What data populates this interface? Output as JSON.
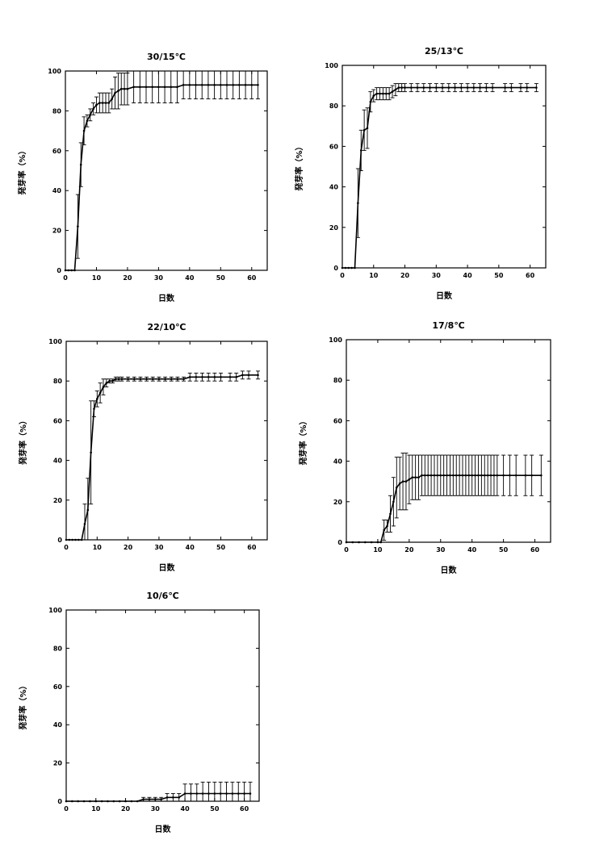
{
  "chart_data": [
    {
      "type": "line",
      "title": "30/15℃",
      "xlabel": "日数",
      "ylabel": "発芽率（%）",
      "xlim": [
        0,
        65
      ],
      "ylim": [
        0,
        100
      ],
      "xticks": [
        "0",
        "10",
        "20",
        "30",
        "40",
        "50",
        "60"
      ],
      "yticks": [
        "0",
        "20",
        "40",
        "60",
        "80",
        "100"
      ],
      "grid": false,
      "series": [
        {
          "x": [
            0,
            1,
            2,
            3,
            4,
            5,
            6,
            7,
            8,
            9,
            10,
            11,
            12,
            13,
            14,
            15,
            16,
            17,
            18,
            19,
            20,
            22,
            24,
            26,
            28,
            30,
            32,
            34,
            36,
            38,
            40,
            42,
            44,
            46,
            48,
            50,
            52,
            54,
            56,
            58,
            60,
            62
          ],
          "y": [
            0,
            0,
            0,
            0,
            22,
            53,
            70,
            75,
            78,
            81,
            83,
            84,
            84,
            84,
            84,
            86,
            89,
            90,
            91,
            91,
            91,
            92,
            92,
            92,
            92,
            92,
            92,
            92,
            92,
            93,
            93,
            93,
            93,
            93,
            93,
            93,
            93,
            93,
            93,
            93,
            93,
            93
          ],
          "err": [
            0,
            0,
            0,
            0,
            16,
            11,
            7,
            3,
            3,
            3,
            4,
            5,
            5,
            5,
            5,
            5,
            8,
            9,
            8,
            8,
            8,
            8,
            8,
            8,
            8,
            8,
            8,
            8,
            8,
            7,
            7,
            7,
            7,
            7,
            7,
            7,
            7,
            7,
            7,
            7,
            7,
            7
          ]
        }
      ]
    },
    {
      "type": "line",
      "title": "25/13℃",
      "xlabel": "日数",
      "ylabel": "発芽率（%）",
      "xlim": [
        0,
        65
      ],
      "ylim": [
        0,
        100
      ],
      "xticks": [
        "0",
        "10",
        "20",
        "30",
        "40",
        "50",
        "60"
      ],
      "yticks": [
        "0",
        "20",
        "40",
        "60",
        "80",
        "100"
      ],
      "grid": false,
      "series": [
        {
          "x": [
            0,
            1,
            2,
            3,
            4,
            5,
            6,
            7,
            8,
            9,
            10,
            11,
            12,
            13,
            14,
            15,
            16,
            17,
            18,
            19,
            20,
            22,
            24,
            26,
            28,
            30,
            32,
            34,
            36,
            38,
            40,
            42,
            44,
            46,
            48,
            52,
            54,
            57,
            59,
            62
          ],
          "y": [
            0,
            0,
            0,
            0,
            0,
            32,
            58,
            68,
            69,
            82,
            85,
            86,
            86,
            86,
            86,
            86,
            87,
            88,
            89,
            89,
            89,
            89,
            89,
            89,
            89,
            89,
            89,
            89,
            89,
            89,
            89,
            89,
            89,
            89,
            89,
            89,
            89,
            89,
            89,
            89
          ],
          "err": [
            0,
            0,
            0,
            0,
            0,
            17,
            10,
            10,
            10,
            5,
            3,
            3,
            3,
            3,
            3,
            3,
            3,
            3,
            2,
            2,
            2,
            2,
            2,
            2,
            2,
            2,
            2,
            2,
            2,
            2,
            2,
            2,
            2,
            2,
            2,
            2,
            2,
            2,
            2,
            2
          ]
        }
      ]
    },
    {
      "type": "line",
      "title": "22/10℃",
      "xlabel": "日数",
      "ylabel": "発芽率（%）",
      "xlim": [
        0,
        65
      ],
      "ylim": [
        0,
        100
      ],
      "xticks": [
        "0",
        "10",
        "20",
        "30",
        "40",
        "50",
        "60"
      ],
      "yticks": [
        "0",
        "20",
        "40",
        "60",
        "80",
        "100"
      ],
      "grid": false,
      "series": [
        {
          "x": [
            0,
            1,
            2,
            3,
            4,
            5,
            6,
            7,
            8,
            9,
            10,
            11,
            12,
            13,
            14,
            15,
            16,
            17,
            18,
            20,
            22,
            24,
            26,
            28,
            30,
            32,
            34,
            36,
            38,
            40,
            42,
            44,
            46,
            48,
            50,
            53,
            55,
            57,
            59,
            62
          ],
          "y": [
            0,
            0,
            0,
            0,
            0,
            0,
            8,
            15,
            44,
            66,
            71,
            74,
            77,
            79,
            80,
            80,
            81,
            81,
            81,
            81,
            81,
            81,
            81,
            81,
            81,
            81,
            81,
            81,
            81,
            82,
            82,
            82,
            82,
            82,
            82,
            82,
            82,
            83,
            83,
            83
          ],
          "err": [
            0,
            0,
            0,
            0,
            0,
            0,
            10,
            16,
            26,
            4,
            4,
            5,
            4,
            2,
            1,
            1,
            1,
            1,
            1,
            1,
            1,
            1,
            1,
            1,
            1,
            1,
            1,
            1,
            1,
            2,
            2,
            2,
            2,
            2,
            2,
            2,
            2,
            2,
            2,
            2
          ]
        }
      ]
    },
    {
      "type": "line",
      "title": "17/8℃",
      "xlabel": "日数",
      "ylabel": "発芽率（%）",
      "xlim": [
        0,
        65
      ],
      "ylim": [
        0,
        100
      ],
      "xticks": [
        "0",
        "10",
        "20",
        "30",
        "40",
        "50",
        "60"
      ],
      "yticks": [
        "0",
        "20",
        "40",
        "60",
        "80",
        "100"
      ],
      "grid": false,
      "series": [
        {
          "x": [
            0,
            2,
            4,
            6,
            8,
            10,
            11,
            12,
            13,
            14,
            15,
            16,
            17,
            18,
            19,
            20,
            21,
            22,
            23,
            24,
            25,
            26,
            27,
            28,
            29,
            30,
            31,
            32,
            33,
            34,
            35,
            36,
            37,
            38,
            39,
            40,
            41,
            42,
            43,
            44,
            45,
            46,
            47,
            48,
            50,
            52,
            54,
            57,
            59,
            62
          ],
          "y": [
            0,
            0,
            0,
            0,
            0,
            0,
            0,
            6,
            8,
            14,
            20,
            27,
            29,
            30,
            30,
            31,
            32,
            32,
            32,
            33,
            33,
            33,
            33,
            33,
            33,
            33,
            33,
            33,
            33,
            33,
            33,
            33,
            33,
            33,
            33,
            33,
            33,
            33,
            33,
            33,
            33,
            33,
            33,
            33,
            33,
            33,
            33,
            33,
            33,
            33
          ],
          "err": [
            0,
            0,
            0,
            0,
            0,
            0,
            0,
            5,
            3,
            9,
            12,
            15,
            13,
            14,
            14,
            12,
            11,
            11,
            11,
            10,
            10,
            10,
            10,
            10,
            10,
            10,
            10,
            10,
            10,
            10,
            10,
            10,
            10,
            10,
            10,
            10,
            10,
            10,
            10,
            10,
            10,
            10,
            10,
            10,
            10,
            10,
            10,
            10,
            10,
            10
          ]
        }
      ]
    },
    {
      "type": "line",
      "title": "10/6℃",
      "xlabel": "日数",
      "ylabel": "発芽率（%）",
      "xlim": [
        0,
        65
      ],
      "ylim": [
        0,
        100
      ],
      "xticks": [
        "0",
        "10",
        "20",
        "30",
        "40",
        "50",
        "60"
      ],
      "yticks": [
        "0",
        "20",
        "40",
        "60",
        "80",
        "100"
      ],
      "grid": false,
      "series": [
        {
          "x": [
            0,
            2,
            4,
            6,
            8,
            10,
            12,
            14,
            16,
            18,
            20,
            22,
            24,
            26,
            28,
            30,
            32,
            34,
            36,
            38,
            40,
            42,
            44,
            46,
            48,
            50,
            52,
            54,
            56,
            58,
            60,
            62
          ],
          "y": [
            0,
            0,
            0,
            0,
            0,
            0,
            0,
            0,
            0,
            0,
            0,
            0,
            0,
            1,
            1,
            1,
            1,
            2,
            2,
            2,
            4,
            4,
            4,
            4,
            4,
            4,
            4,
            4,
            4,
            4,
            4,
            4
          ],
          "err": [
            0,
            0,
            0,
            0,
            0,
            0,
            0,
            0,
            0,
            0,
            0,
            0,
            0,
            1,
            1,
            1,
            1,
            2,
            2,
            2,
            5,
            5,
            5,
            6,
            6,
            6,
            6,
            6,
            6,
            6,
            6,
            6
          ]
        }
      ]
    }
  ]
}
